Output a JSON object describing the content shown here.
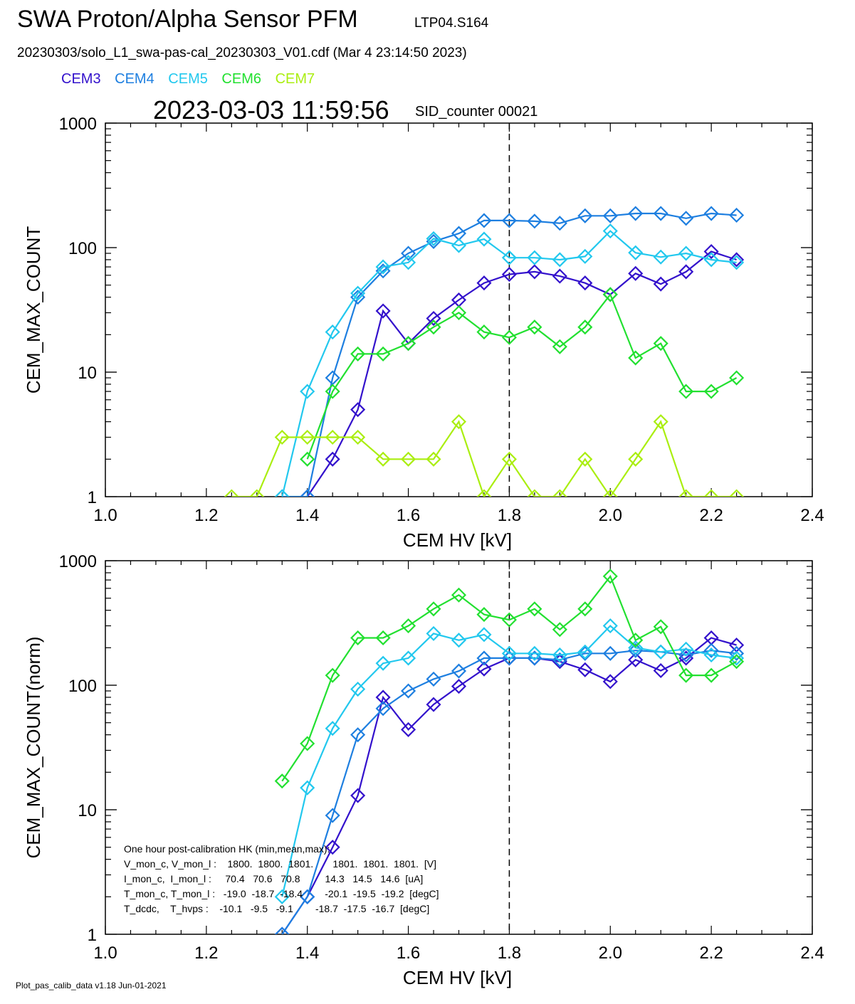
{
  "header": {
    "title": "SWA Proton/Alpha Sensor PFM",
    "subtitle": "LTP04.S164",
    "file_line": "20230303/solo_L1_swa-pas-cal_20230303_V01.cdf  (Mar  4 23:14:50 2023)",
    "timestamp": "2023-03-03 11:59:56",
    "sid": "SID_counter 00021"
  },
  "legend": [
    {
      "name": "CEM3",
      "color": "#3311cc"
    },
    {
      "name": "CEM4",
      "color": "#1e7fe0"
    },
    {
      "name": "CEM5",
      "color": "#22c8ee"
    },
    {
      "name": "CEM6",
      "color": "#22e030"
    },
    {
      "name": "CEM7",
      "color": "#aaee10"
    }
  ],
  "hk_table": {
    "heading": "One hour post-calibration HK (min,mean,max):",
    "rows": [
      "V_mon_c, V_mon_l :    1800.  1800.  1801.       1801.  1801.  1801.  [V]",
      "I_mon_c,  I_mon_l :     70.4   70.6   70.8         14.3   14.5   14.6  [uA]",
      "T_mon_c, T_mon_l :   -19.0  -18.7  -18.4        -20.1  -19.5  -19.2  [degC]",
      "T_dcdc,    T_hvps :    -10.1   -9.5   -9.1        -18.7  -17.5  -16.7  [degC]"
    ]
  },
  "footer": "Plot_pas_calib_data v1.18 Jun-01-2021",
  "chart_data": [
    {
      "type": "line",
      "ylabel": "CEM_MAX_COUNT",
      "xlabel": "CEM HV [kV]",
      "xlim": [
        1.0,
        2.4
      ],
      "ylim": [
        1,
        1000
      ],
      "yscale": "log",
      "x_ticks": [
        "1.0",
        "1.2",
        "1.4",
        "1.6",
        "1.8",
        "2.0",
        "2.2",
        "2.4"
      ],
      "y_ticks": [
        "1",
        "10",
        "100",
        "1000"
      ],
      "vline_x": 1.8,
      "series": [
        {
          "name": "CEM3",
          "color": "#3311cc",
          "x": [
            1.4,
            1.45,
            1.5,
            1.55,
            1.6,
            1.65,
            1.7,
            1.75,
            1.8,
            1.85,
            1.9,
            1.95,
            2.0,
            2.05,
            2.1,
            2.15,
            2.2,
            2.25
          ],
          "y": [
            1,
            2,
            5,
            31,
            17,
            27,
            38,
            52,
            61,
            64,
            59,
            52,
            42,
            62,
            51,
            64,
            93,
            80
          ]
        },
        {
          "name": "CEM4",
          "color": "#1e7fe0",
          "x": [
            1.35,
            1.4,
            1.45,
            1.5,
            1.55,
            1.6,
            1.65,
            1.7,
            1.75,
            1.8,
            1.85,
            1.9,
            1.95,
            2.0,
            2.05,
            2.1,
            2.15,
            2.2,
            2.25
          ],
          "y": [
            1,
            1,
            9,
            40,
            65,
            90,
            112,
            130,
            165,
            165,
            163,
            157,
            180,
            180,
            188,
            188,
            172,
            188,
            182
          ]
        },
        {
          "name": "CEM5",
          "color": "#22c8ee",
          "x": [
            1.35,
            1.4,
            1.45,
            1.5,
            1.55,
            1.6,
            1.65,
            1.7,
            1.75,
            1.8,
            1.85,
            1.9,
            1.95,
            2.0,
            2.05,
            2.1,
            2.15,
            2.2,
            2.25
          ],
          "y": [
            1,
            7,
            21,
            43,
            70,
            76,
            118,
            104,
            117,
            83,
            83,
            80,
            85,
            136,
            91,
            84,
            90,
            80,
            76
          ]
        },
        {
          "name": "CEM6",
          "color": "#22e030",
          "x": [
            1.4,
            1.45,
            1.5,
            1.55,
            1.6,
            1.65,
            1.7,
            1.75,
            1.8,
            1.85,
            1.9,
            1.95,
            2.0,
            2.05,
            2.1,
            2.15,
            2.2,
            2.25
          ],
          "y": [
            2,
            7,
            14,
            14,
            17,
            23,
            30,
            21,
            19,
            23,
            16,
            23,
            42,
            13,
            17,
            7,
            7,
            9
          ]
        },
        {
          "name": "CEM7",
          "color": "#aaee10",
          "x": [
            1.25,
            1.3,
            1.35,
            1.4,
            1.45,
            1.5,
            1.55,
            1.6,
            1.65,
            1.7,
            1.75,
            1.8,
            1.85,
            1.9,
            1.95,
            2.0,
            2.05,
            2.1,
            2.15,
            2.2,
            2.25
          ],
          "y": [
            1,
            1,
            3,
            3,
            3,
            3,
            2,
            2,
            2,
            4,
            1,
            2,
            1,
            1,
            2,
            1,
            2,
            4,
            1,
            1,
            1
          ]
        }
      ]
    },
    {
      "type": "line",
      "ylabel": "CEM_MAX_COUNT(norm)",
      "xlabel": "CEM HV [kV]",
      "xlim": [
        1.0,
        2.4
      ],
      "ylim": [
        1,
        1000
      ],
      "yscale": "log",
      "x_ticks": [
        "1.0",
        "1.2",
        "1.4",
        "1.6",
        "1.8",
        "2.0",
        "2.2",
        "2.4"
      ],
      "y_ticks": [
        "1",
        "10",
        "100",
        "1000"
      ],
      "vline_x": 1.8,
      "series": [
        {
          "name": "CEM3",
          "color": "#3311cc",
          "x": [
            1.35,
            1.4,
            1.45,
            1.5,
            1.55,
            1.6,
            1.65,
            1.7,
            1.75,
            1.8,
            1.85,
            1.9,
            1.95,
            2.0,
            2.05,
            2.1,
            2.15,
            2.2,
            2.25
          ],
          "y": [
            1,
            2,
            5,
            13,
            80,
            44,
            70,
            98,
            135,
            165,
            165,
            155,
            133,
            107,
            160,
            131,
            165,
            240,
            210
          ]
        },
        {
          "name": "CEM4",
          "color": "#1e7fe0",
          "x": [
            1.35,
            1.4,
            1.45,
            1.5,
            1.55,
            1.6,
            1.65,
            1.7,
            1.75,
            1.8,
            1.85,
            1.9,
            1.95,
            2.0,
            2.05,
            2.1,
            2.15,
            2.2,
            2.25
          ],
          "y": [
            1,
            2,
            9,
            40,
            65,
            90,
            112,
            130,
            165,
            165,
            165,
            160,
            180,
            180,
            190,
            185,
            175,
            190,
            180
          ]
        },
        {
          "name": "CEM5",
          "color": "#22c8ee",
          "x": [
            1.35,
            1.4,
            1.45,
            1.5,
            1.55,
            1.6,
            1.65,
            1.7,
            1.75,
            1.8,
            1.85,
            1.9,
            1.95,
            2.0,
            2.05,
            2.1,
            2.15,
            2.2,
            2.25
          ],
          "y": [
            2,
            15,
            45,
            93,
            150,
            165,
            260,
            230,
            255,
            180,
            180,
            175,
            185,
            300,
            200,
            185,
            195,
            175,
            165
          ]
        },
        {
          "name": "CEM6",
          "color": "#22e030",
          "x": [
            1.35,
            1.4,
            1.45,
            1.5,
            1.55,
            1.6,
            1.65,
            1.7,
            1.75,
            1.8,
            1.85,
            1.9,
            1.95,
            2.0,
            2.05,
            2.1,
            2.15,
            2.2,
            2.25
          ],
          "y": [
            17,
            34,
            120,
            240,
            240,
            300,
            410,
            530,
            370,
            335,
            410,
            280,
            410,
            750,
            230,
            295,
            120,
            120,
            155
          ]
        }
      ]
    }
  ]
}
